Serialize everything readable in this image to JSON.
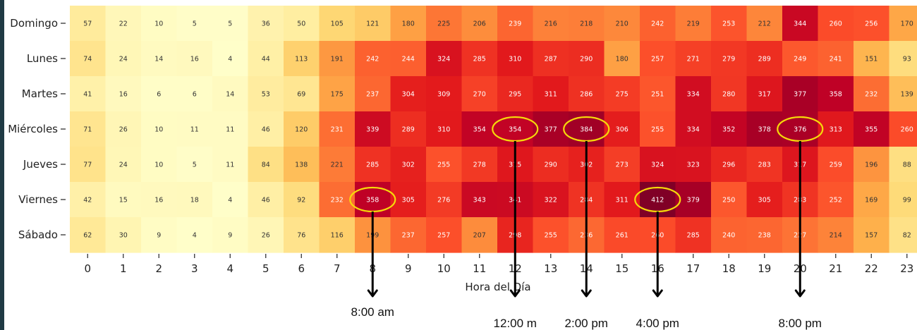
{
  "chart_data": {
    "type": "heatmap",
    "xlabel": "Hora del Día",
    "ylabel": "",
    "x": [
      "0",
      "1",
      "2",
      "3",
      "4",
      "5",
      "6",
      "7",
      "8",
      "9",
      "10",
      "11",
      "12",
      "13",
      "14",
      "15",
      "16",
      "17",
      "18",
      "19",
      "20",
      "21",
      "22",
      "23"
    ],
    "y": [
      "Domingo",
      "Lunes",
      "Martes",
      "Miércoles",
      "Jueves",
      "Viernes",
      "Sábado"
    ],
    "values": [
      [
        57,
        22,
        10,
        5,
        5,
        36,
        50,
        105,
        121,
        180,
        225,
        206,
        239,
        216,
        218,
        210,
        242,
        219,
        253,
        212,
        344,
        260,
        256,
        170
      ],
      [
        74,
        24,
        14,
        16,
        4,
        44,
        113,
        191,
        242,
        244,
        324,
        285,
        310,
        287,
        290,
        180,
        257,
        271,
        279,
        289,
        249,
        241,
        151,
        93
      ],
      [
        41,
        16,
        6,
        6,
        14,
        53,
        69,
        175,
        237,
        304,
        309,
        270,
        295,
        311,
        286,
        275,
        251,
        334,
        280,
        317,
        377,
        358,
        232,
        139
      ],
      [
        71,
        26,
        10,
        11,
        11,
        46,
        120,
        231,
        339,
        289,
        310,
        354,
        354,
        377,
        384,
        306,
        255,
        334,
        352,
        378,
        376,
        313,
        355,
        260
      ],
      [
        77,
        24,
        10,
        5,
        11,
        84,
        138,
        221,
        285,
        302,
        255,
        278,
        315,
        290,
        302,
        273,
        324,
        323,
        296,
        283,
        317,
        259,
        196,
        88
      ],
      [
        42,
        15,
        16,
        18,
        4,
        46,
        92,
        232,
        358,
        305,
        276,
        343,
        341,
        322,
        284,
        311,
        412,
        379,
        250,
        305,
        283,
        252,
        169,
        99
      ],
      [
        62,
        30,
        9,
        4,
        9,
        26,
        76,
        116,
        199,
        237,
        257,
        207,
        298,
        255,
        236,
        261,
        260,
        285,
        240,
        238,
        227,
        214,
        157,
        82
      ]
    ],
    "colormap": "YlOrRd",
    "vmin": 0,
    "vmax": 412,
    "highlights": [
      {
        "row": 5,
        "col": 8,
        "label": "8:00  am"
      },
      {
        "row": 3,
        "col": 12,
        "label": "12:00  m"
      },
      {
        "row": 3,
        "col": 14,
        "label": "2:00 pm"
      },
      {
        "row": 5,
        "col": 16,
        "label": "4:00  pm"
      },
      {
        "row": 3,
        "col": 20,
        "label": "8:00  pm"
      }
    ],
    "highlight_color": "#f5d90a"
  }
}
